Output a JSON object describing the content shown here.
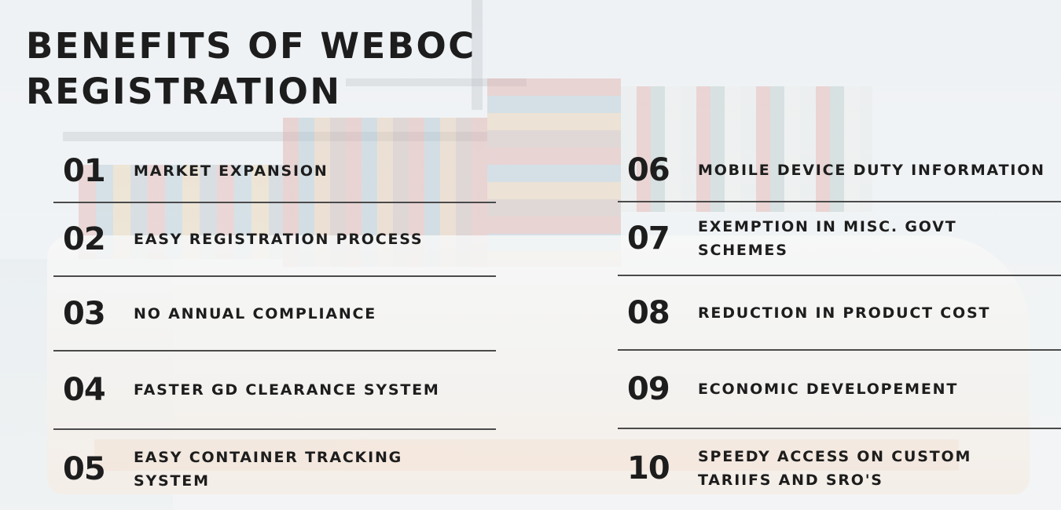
{
  "title": "BENEFITS OF WEBOC REGISTRATION",
  "colors": {
    "text": "#1d1d1d",
    "divider": "#4a4a4a",
    "background": "#eef1f4"
  },
  "background_image": "container-ship-at-port",
  "benefits_left": [
    {
      "number": "01",
      "label": "MARKET EXPANSION"
    },
    {
      "number": "02",
      "label": "EASY REGISTRATION PROCESS"
    },
    {
      "number": "03",
      "label": "NO ANNUAL COMPLIANCE"
    },
    {
      "number": "04",
      "label": "FASTER GD CLEARANCE SYSTEM"
    },
    {
      "number": "05",
      "label": "EASY CONTAINER TRACKING SYSTEM"
    }
  ],
  "benefits_right": [
    {
      "number": "06",
      "label": "MOBILE DEVICE DUTY INFORMATION"
    },
    {
      "number": "07",
      "label": "EXEMPTION IN MISC. GOVT SCHEMES"
    },
    {
      "number": "08",
      "label": "REDUCTION IN PRODUCT COST"
    },
    {
      "number": "09",
      "label": "ECONOMIC DEVELOPEMENT"
    },
    {
      "number": "10",
      "label": "SPEEDY ACCESS ON CUSTOM TARIIFS AND SRO'S"
    }
  ]
}
